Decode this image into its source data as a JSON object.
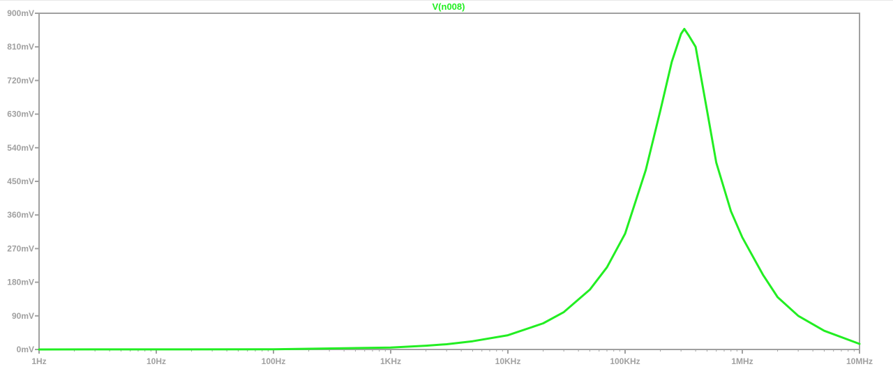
{
  "chart_data": {
    "type": "line",
    "title": "V(n008)",
    "x_scale": "log",
    "xlim_hz": [
      1,
      10000000
    ],
    "ylim_mv": [
      0,
      900
    ],
    "x_tick_values_hz": [
      1,
      10,
      100,
      1000,
      10000,
      100000,
      1000000,
      10000000
    ],
    "x_tick_labels": [
      "1Hz",
      "10Hz",
      "100Hz",
      "1KHz",
      "10KHz",
      "100KHz",
      "1MHz",
      "10MHz"
    ],
    "y_tick_values_mv": [
      0,
      90,
      180,
      270,
      360,
      450,
      540,
      630,
      720,
      810,
      900
    ],
    "y_tick_labels": [
      "0mV",
      "90mV",
      "180mV",
      "270mV",
      "360mV",
      "450mV",
      "540mV",
      "630mV",
      "720mV",
      "810mV",
      "900mV"
    ],
    "grid": false,
    "series": [
      {
        "name": "V(n008)",
        "color": "#22ee22",
        "x_hz": [
          1,
          100,
          1000,
          2000,
          3000,
          5000,
          10000,
          20000,
          30000,
          50000,
          70000,
          100000,
          150000,
          200000,
          250000,
          300000,
          320000,
          350000,
          400000,
          500000,
          600000,
          800000,
          1000000,
          1500000,
          2000000,
          3000000,
          5000000,
          10000000
        ],
        "y_mv": [
          0,
          0.5,
          5,
          10,
          14,
          22,
          38,
          70,
          100,
          160,
          220,
          310,
          480,
          640,
          770,
          845,
          858,
          840,
          810,
          640,
          500,
          370,
          300,
          200,
          140,
          90,
          50,
          15
        ]
      }
    ]
  }
}
